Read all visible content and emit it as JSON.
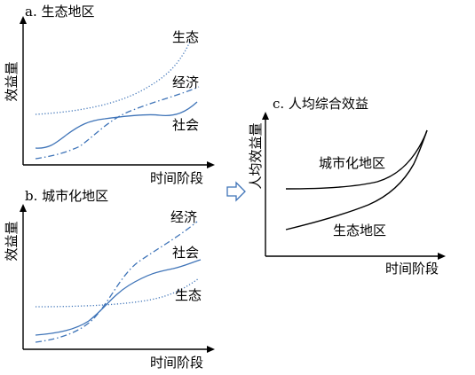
{
  "panel_a": {
    "title": "a. 生态地区",
    "ylabel": "效益量",
    "xlabel": "时间阶段",
    "curves": {
      "ecology": "生态",
      "economy": "经济",
      "society": "社会"
    }
  },
  "panel_b": {
    "title": "b. 城市化地区",
    "ylabel": "效益量",
    "xlabel": "时间阶段",
    "curves": {
      "economy": "经济",
      "society": "社会",
      "ecology": "生态"
    }
  },
  "panel_c": {
    "title": "c. 人均综合效益",
    "ylabel": "人均效益量",
    "xlabel": "时间阶段",
    "curves": {
      "urban": "城市化地区",
      "ecological": "生态地区"
    }
  },
  "colors": {
    "curve_blue": "#3f74b8",
    "axis": "#000000"
  },
  "icons": {
    "transition_arrow": "right-arrow-outline-icon"
  }
}
